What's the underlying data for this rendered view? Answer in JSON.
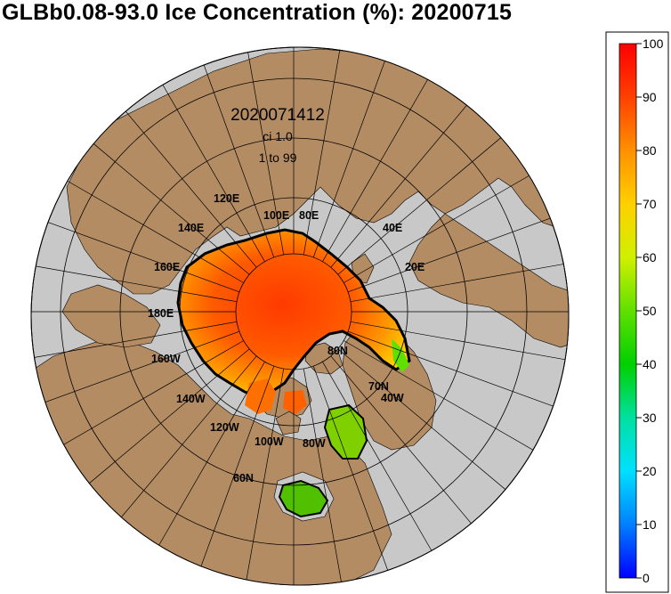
{
  "title": "GLBb0.08-93.0 Ice Concentration (%): 20200715",
  "annotation": {
    "datetime": "2020071412",
    "ci_label": "ci 1.0",
    "range_label": "1 to 99"
  },
  "longitude_labels": [
    "120E",
    "100E",
    "80E",
    "140E",
    "40E",
    "160E",
    "20E",
    "180E",
    "160W",
    "140W",
    "120W",
    "100W",
    "80W",
    "40W"
  ],
  "latitude_labels": [
    "80N",
    "70N",
    "60N"
  ],
  "colorbar": {
    "min": 0,
    "max": 100,
    "ticks": [
      "100",
      "90",
      "80",
      "70",
      "60",
      "50",
      "40",
      "30",
      "20",
      "10",
      "0"
    ]
  },
  "colors": {
    "ocean": "#c8c8c8",
    "land": "#b48c64",
    "ice_high": "#ff4000",
    "ice_edge": "#000000"
  }
}
